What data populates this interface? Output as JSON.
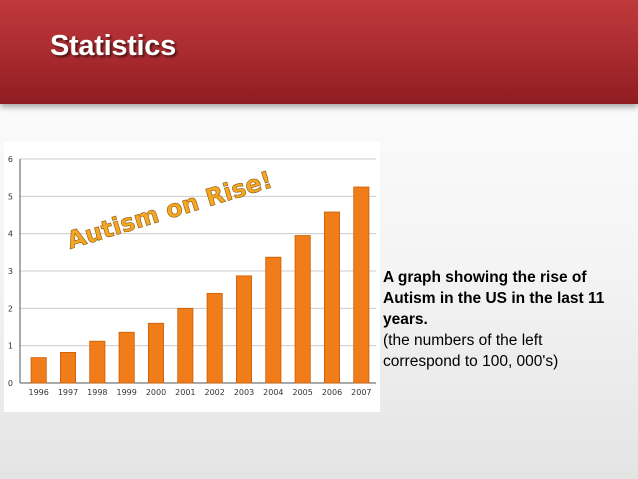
{
  "slide": {
    "title": "Statistics",
    "caption_bold": "A graph showing the rise of Autism in the US in the last 11 years.",
    "caption_plain": "(the numbers of the left correspond to 100, 000's)"
  },
  "colors": {
    "title_bar": "#a82a2e",
    "bar_fill": "#f07d1a",
    "bar_stroke": "#c85f08",
    "overlay_text": "#f5a623",
    "grid": "#cccccc"
  },
  "chart_data": {
    "type": "bar",
    "title": "",
    "overlay_text": "Autism on Rise!",
    "xlabel": "",
    "ylabel": "",
    "categories": [
      "1996",
      "1997",
      "1998",
      "1999",
      "2000",
      "2001",
      "2002",
      "2003",
      "2004",
      "2005",
      "2006",
      "2007"
    ],
    "values": [
      0.68,
      0.82,
      1.12,
      1.36,
      1.6,
      2.0,
      2.4,
      2.87,
      3.37,
      3.95,
      4.58,
      5.25
    ],
    "ylim": [
      0,
      6
    ],
    "yticks": [
      "0",
      "1",
      "2",
      "3",
      "4",
      "5",
      "6"
    ],
    "grid": true
  }
}
